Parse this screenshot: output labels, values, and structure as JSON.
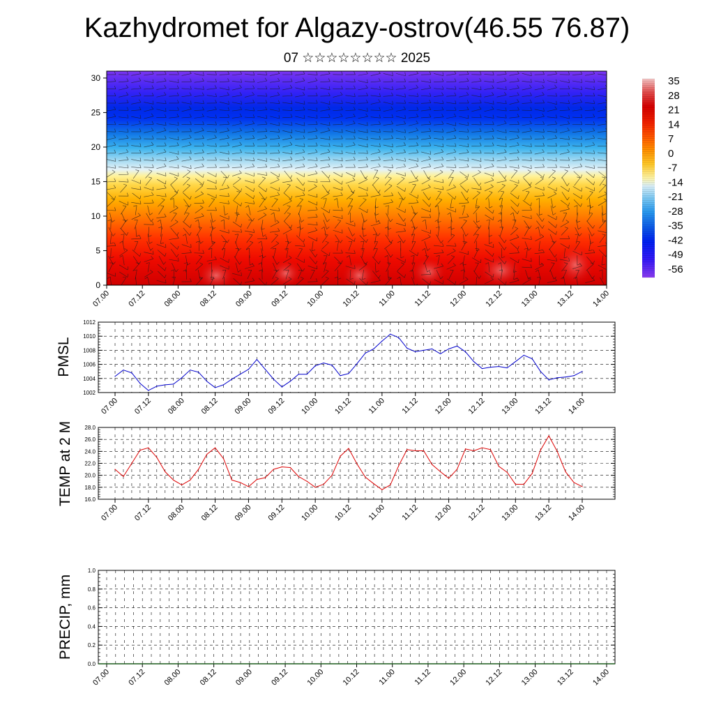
{
  "title": "Kazhydromet for Algazy-ostrov(46.55 76.87)",
  "subtitle": "07 ☆☆☆☆☆☆☆☆ 2025",
  "colorbar": {
    "labels": [
      "35",
      "28",
      "21",
      "14",
      "7",
      "0",
      "-7",
      "-14",
      "-21",
      "-28",
      "-35",
      "-42",
      "-49",
      "-56"
    ],
    "colors": [
      "#f2b8b8",
      "#e8502a",
      "#d40000",
      "#ee1a00",
      "#f84800",
      "#ff8c00",
      "#ffc020",
      "#fff09a",
      "#c8e8f4",
      "#58c0f0",
      "#1070e0",
      "#0028f0",
      "#2818f8",
      "#7030f0"
    ]
  },
  "chart_data": [
    {
      "type": "heatmap",
      "name": "temperature-wind-section",
      "y_ticks": [
        "0",
        "5",
        "10",
        "15",
        "20",
        "25",
        "30"
      ],
      "ylim": [
        0,
        31
      ],
      "x_ticks": [
        "07.00",
        "07.12",
        "08.00",
        "08.12",
        "09.00",
        "09.12",
        "10.00",
        "10.12",
        "11.00",
        "11.12",
        "12.00",
        "12.12",
        "13.00",
        "13.12",
        "14.00"
      ],
      "grid": false
    },
    {
      "type": "line",
      "name": "pmsl",
      "ylabel": "PMSL",
      "ylim": [
        1002,
        1012
      ],
      "y_ticks": [
        "1012",
        "1010",
        "1008",
        "1006",
        "1004",
        "1002"
      ],
      "x_ticks": [
        "07.00",
        "07.12",
        "08.00",
        "08.12",
        "09.00",
        "09.12",
        "10.00",
        "10.12",
        "11.00",
        "11.12",
        "12.00",
        "12.12",
        "13.00",
        "13.12",
        "14.00"
      ],
      "color": "#0000cc",
      "values": [
        1004.3,
        1005.2,
        1004.8,
        1003.3,
        1002.3,
        1002.9,
        1003.1,
        1003.2,
        1004.1,
        1005.2,
        1004.9,
        1003.6,
        1002.7,
        1003.1,
        1003.9,
        1004.6,
        1005.3,
        1006.7,
        1005.3,
        1003.9,
        1002.8,
        1003.6,
        1004.6,
        1004.6,
        1005.8,
        1006.2,
        1005.9,
        1004.4,
        1004.7,
        1006.1,
        1007.6,
        1008.2,
        1009.3,
        1010.3,
        1009.8,
        1008.3,
        1007.8,
        1008.0,
        1008.2,
        1007.5,
        1008.2,
        1008.6,
        1007.8,
        1006.4,
        1005.4,
        1005.6,
        1005.7,
        1005.5,
        1006.4,
        1007.3,
        1006.8,
        1005.0,
        1003.8,
        1004.1,
        1004.2,
        1004.4,
        1005.0
      ],
      "grid": true
    },
    {
      "type": "line",
      "name": "temp2m",
      "ylabel": "TEMP at 2 M",
      "ylim": [
        16,
        28
      ],
      "y_ticks": [
        "28.0",
        "26.0",
        "24.0",
        "22.0",
        "20.0",
        "18.0",
        "16.0"
      ],
      "x_ticks": [
        "07.00",
        "07.12",
        "08.00",
        "08.12",
        "09.00",
        "09.12",
        "10.00",
        "10.12",
        "11.00",
        "11.12",
        "12.00",
        "12.12",
        "13.00",
        "13.12",
        "14.00"
      ],
      "color": "#dd0000",
      "values": [
        21.0,
        19.8,
        22.0,
        24.2,
        24.6,
        23.0,
        20.6,
        19.2,
        18.4,
        19.2,
        21.0,
        23.5,
        24.6,
        22.8,
        19.2,
        18.8,
        18.1,
        19.3,
        19.6,
        21.0,
        21.4,
        21.3,
        19.8,
        19.0,
        18.0,
        18.5,
        20.0,
        23.2,
        24.5,
        21.9,
        19.7,
        18.6,
        17.6,
        18.4,
        21.6,
        24.3,
        24.1,
        24.1,
        21.8,
        20.6,
        19.5,
        21.0,
        24.4,
        24.1,
        24.6,
        24.3,
        21.5,
        20.5,
        18.5,
        18.5,
        20.3,
        24.2,
        26.6,
        24.0,
        20.6,
        18.8,
        18.1
      ],
      "grid": true
    },
    {
      "type": "bar",
      "name": "precip",
      "ylabel": "PRECIP, mm",
      "ylim": [
        0,
        1
      ],
      "y_ticks": [
        "1.0",
        "0.8",
        "0.6",
        "0.4",
        "0.2",
        "0.0"
      ],
      "x_ticks": [
        "07.00",
        "07.12",
        "08.00",
        "08.12",
        "09.00",
        "09.12",
        "10.00",
        "10.12",
        "11.00",
        "11.12",
        "12.00",
        "12.12",
        "13.00",
        "13.12",
        "14.00"
      ],
      "values": [
        0,
        0,
        0,
        0,
        0,
        0,
        0,
        0,
        0,
        0,
        0,
        0,
        0,
        0,
        0,
        0,
        0,
        0,
        0,
        0,
        0,
        0,
        0,
        0,
        0,
        0,
        0,
        0,
        0,
        0,
        0,
        0,
        0,
        0,
        0,
        0,
        0,
        0,
        0,
        0,
        0,
        0,
        0,
        0,
        0,
        0,
        0,
        0,
        0,
        0,
        0,
        0,
        0,
        0,
        0,
        0,
        0
      ],
      "grid": true
    }
  ]
}
